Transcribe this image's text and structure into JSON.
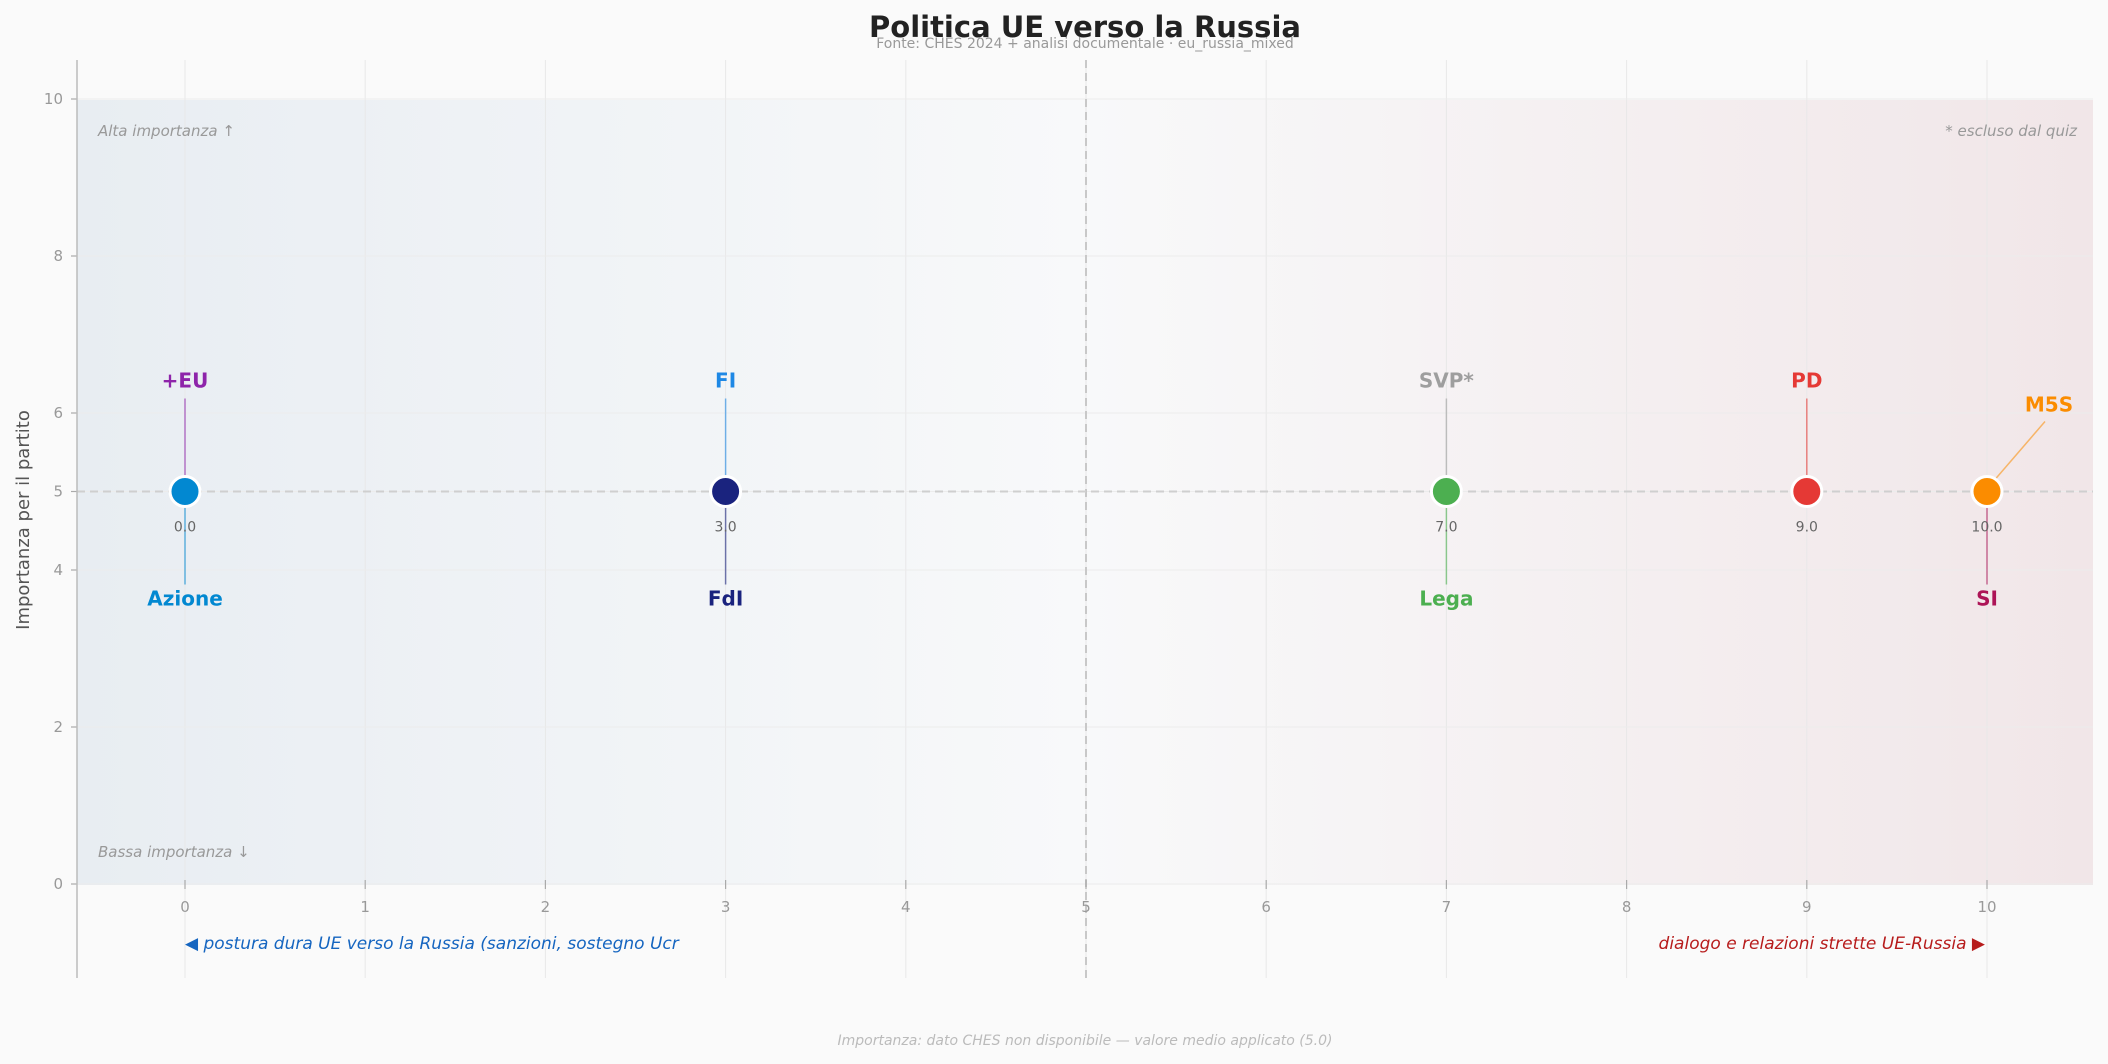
{
  "chart_data": {
    "type": "scatter",
    "title": "Politica UE verso la Russia",
    "subtitle": "Fonte: CHES 2024 + analisi documentale  ·  eu_russia_mixed",
    "xlabel": "",
    "ylabel": "Importanza per il partito",
    "xlim": [
      -0.6,
      10.6
    ],
    "ylim": [
      0,
      10
    ],
    "x_ticks": [
      "0",
      "1",
      "2",
      "3",
      "4",
      "5",
      "6",
      "7",
      "8",
      "9",
      "10"
    ],
    "y_ticks": [
      "0",
      "2",
      "4",
      "5",
      "6",
      "8",
      "10"
    ],
    "grid": true,
    "midline_x": 5,
    "midline_y": 5,
    "corner_labels": {
      "top_left": "Alta importanza ↑",
      "bottom_left": "Bassa importanza ↓",
      "top_right": "* escluso dal quiz"
    },
    "axis_descriptions": {
      "left": "◀  postura dura UE verso la Russia (sanzioni, sostegno Ucr",
      "right": "dialogo e relazioni strette UE-Russia  ▶",
      "left_color": "#1565c0",
      "right_color": "#b71c1c"
    },
    "footnote": "Importanza: dato CHES non disponibile — valore medio applicato (5.0)",
    "points": [
      {
        "x": 0.0,
        "y": 5.0,
        "value_label": "0.0",
        "color": "#0288d1"
      },
      {
        "x": 3.0,
        "y": 5.0,
        "value_label": "3.0",
        "color": "#1a237e"
      },
      {
        "x": 7.0,
        "y": 5.0,
        "value_label": "7.0",
        "color": "#4caf50"
      },
      {
        "x": 9.0,
        "y": 5.0,
        "value_label": "9.0",
        "color": "#e53935"
      },
      {
        "x": 10.0,
        "y": 5.0,
        "value_label": "10.0",
        "color": "#fb8c00"
      }
    ],
    "labels": [
      {
        "name": "+EU",
        "x": 0.0,
        "pos": "above",
        "color": "#8e24aa",
        "bold": true
      },
      {
        "name": "Azione",
        "x": 0.0,
        "pos": "below",
        "color": "#0288d1",
        "bold": true
      },
      {
        "name": "FI",
        "x": 3.0,
        "pos": "above",
        "color": "#1e88e5",
        "bold": true
      },
      {
        "name": "FdI",
        "x": 3.0,
        "pos": "below",
        "color": "#1a237e",
        "bold": true
      },
      {
        "name": "SVP*",
        "x": 7.0,
        "pos": "above",
        "color": "#9e9e9e",
        "bold": false
      },
      {
        "name": "Lega",
        "x": 7.0,
        "pos": "below",
        "color": "#4caf50",
        "bold": true
      },
      {
        "name": "PD",
        "x": 9.0,
        "pos": "above",
        "color": "#e53935",
        "bold": true
      },
      {
        "name": "SI",
        "x": 10.0,
        "pos": "below",
        "color": "#ad1457",
        "bold": true
      },
      {
        "name": "M5S",
        "x": 10.0,
        "pos": "above-right",
        "color": "#fb8c00",
        "bold": true
      }
    ]
  }
}
